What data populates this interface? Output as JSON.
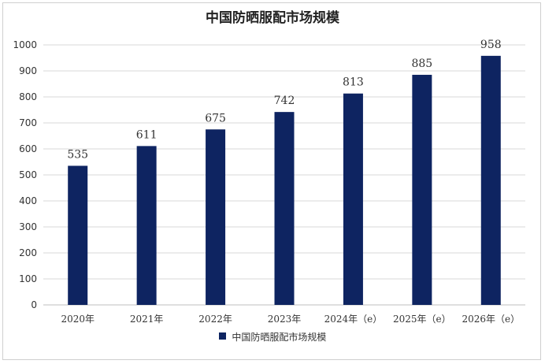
{
  "chart_data": {
    "type": "bar",
    "title": "中国防晒服配市场规模",
    "categories": [
      "2020年",
      "2021年",
      "2022年",
      "2023年",
      "2024年（e）",
      "2025年（e）",
      "2026年（e）"
    ],
    "series": [
      {
        "name": "中国防晒服配市场规模",
        "values": [
          535,
          611,
          675,
          742,
          813,
          885,
          958
        ],
        "color": "#0e2461"
      }
    ],
    "ylim": [
      0,
      1000
    ],
    "yticks": [
      0,
      100,
      200,
      300,
      400,
      500,
      600,
      700,
      800,
      900,
      1000
    ],
    "grid": true,
    "legend_position": "bottom",
    "data_labels": true
  }
}
